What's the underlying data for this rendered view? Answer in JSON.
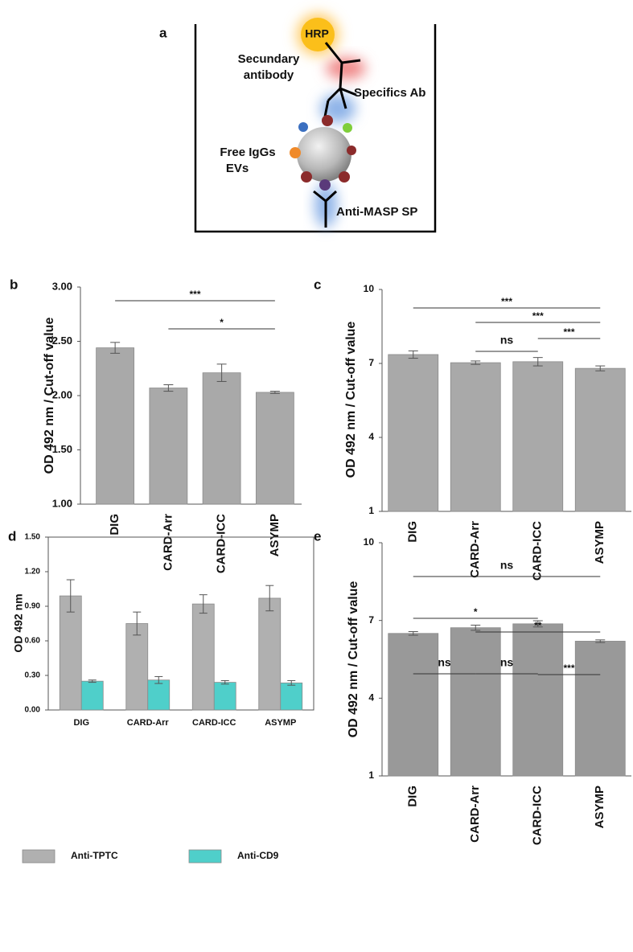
{
  "diagram": {
    "panel": "a",
    "hrp": "HRP",
    "secondary": [
      "Secundary",
      "antibody"
    ],
    "specific": "Specifics Ab",
    "free": [
      "Free IgGs",
      "EVs"
    ],
    "anti_masp": "Anti-MASP SP"
  },
  "chart_data": [
    {
      "type": "bar",
      "panel": "b",
      "y_label": "OD 492 nm / Cut-off value",
      "color": "#a9a9a9",
      "categories": [
        "DIG",
        "CARD-Arr",
        "CARD-ICC",
        "ASYMP"
      ],
      "values": [
        2.44,
        2.07,
        2.21,
        2.03
      ],
      "errors": [
        0.05,
        0.03,
        0.08,
        0.01
      ],
      "ylim": [
        1,
        3
      ],
      "yticks": [
        {
          "value": 1,
          "label": "1.00"
        },
        {
          "value": 1.5,
          "label": "1.50"
        },
        {
          "value": 2,
          "label": "2.00"
        },
        {
          "value": 2.5,
          "label": "2.50"
        },
        {
          "value": 3,
          "label": "3.00"
        }
      ],
      "annotations": [
        {
          "text": "***",
          "between": [
            "DIG",
            "ASYMP"
          ]
        },
        {
          "text": "*",
          "between": [
            "CARD-Arr",
            "ASYMP"
          ]
        }
      ]
    },
    {
      "type": "bar",
      "panel": "c",
      "y_label": "OD 492 nm / Cut-off value",
      "color": "#a9a9a9",
      "categories": [
        "DIG",
        "CARD-Arr",
        "CARD-ICC",
        "ASYMP"
      ],
      "values": [
        7.36,
        7.03,
        7.07,
        6.8
      ],
      "errors": [
        0.15,
        0.07,
        0.17,
        0.1
      ],
      "ylim": [
        1,
        10
      ],
      "yticks": [
        1,
        4,
        7,
        10
      ],
      "annotations": [
        {
          "text": "***",
          "between": [
            "DIG",
            "ASYMP"
          ]
        },
        {
          "text": "***",
          "between": [
            "CARD-Arr",
            "ASYMP"
          ]
        },
        {
          "text": "ns",
          "between": [
            "CARD-Arr",
            "CARD-ICC"
          ]
        },
        {
          "text": "***",
          "between": [
            "CARD-ICC",
            "ASYMP"
          ]
        }
      ]
    },
    {
      "type": "grouped-bar",
      "panel": "d",
      "y_label": "OD 492 nm",
      "categories": [
        "DIG",
        "CARD-Arr",
        "CARD-ICC",
        "ASYMP"
      ],
      "series": [
        {
          "name": "Anti-TPTC",
          "color": "#b0b0b0",
          "values": [
            0.99,
            0.75,
            0.92,
            0.97
          ],
          "errors": [
            0.14,
            0.1,
            0.08,
            0.11
          ]
        },
        {
          "name": "Anti-CD9",
          "color": "#4fcfca",
          "values": [
            0.25,
            0.26,
            0.24,
            0.235
          ],
          "errors": [
            0.01,
            0.03,
            0.015,
            0.02
          ]
        }
      ],
      "ylim": [
        0,
        1.5
      ],
      "yticks": [
        {
          "value": 0,
          "label": "0.00"
        },
        {
          "value": 0.3,
          "label": "0.30"
        },
        {
          "value": 0.6,
          "label": "0.60"
        },
        {
          "value": 0.9,
          "label": "0.90"
        },
        {
          "value": 1.2,
          "label": "1.20"
        },
        {
          "value": 1.5,
          "label": "1.50"
        }
      ],
      "legend": "bottom"
    },
    {
      "type": "bar",
      "panel": "e",
      "y_label": "OD 492 nm / Cut-off value",
      "color": "#999999",
      "categories": [
        "DIG",
        "CARD-Arr",
        "CARD-ICC",
        "ASYMP"
      ],
      "values": [
        6.5,
        6.72,
        6.87,
        6.2
      ],
      "errors": [
        0.07,
        0.1,
        0.12,
        0.05
      ],
      "ylim": [
        1,
        10
      ],
      "yticks": [
        1,
        4,
        7,
        10
      ],
      "annotations": [
        {
          "text": "ns",
          "between": [
            "DIG",
            "ASYMP"
          ]
        },
        {
          "text": "*",
          "between": [
            "DIG",
            "CARD-ICC"
          ]
        },
        {
          "text": "**",
          "between": [
            "CARD-Arr",
            "ASYMP"
          ]
        },
        {
          "text": "ns",
          "between": [
            "DIG",
            "CARD-Arr"
          ]
        },
        {
          "text": "ns",
          "between": [
            "CARD-Arr",
            "CARD-ICC"
          ]
        },
        {
          "text": "***",
          "between": [
            "CARD-ICC",
            "ASYMP"
          ]
        }
      ]
    }
  ]
}
